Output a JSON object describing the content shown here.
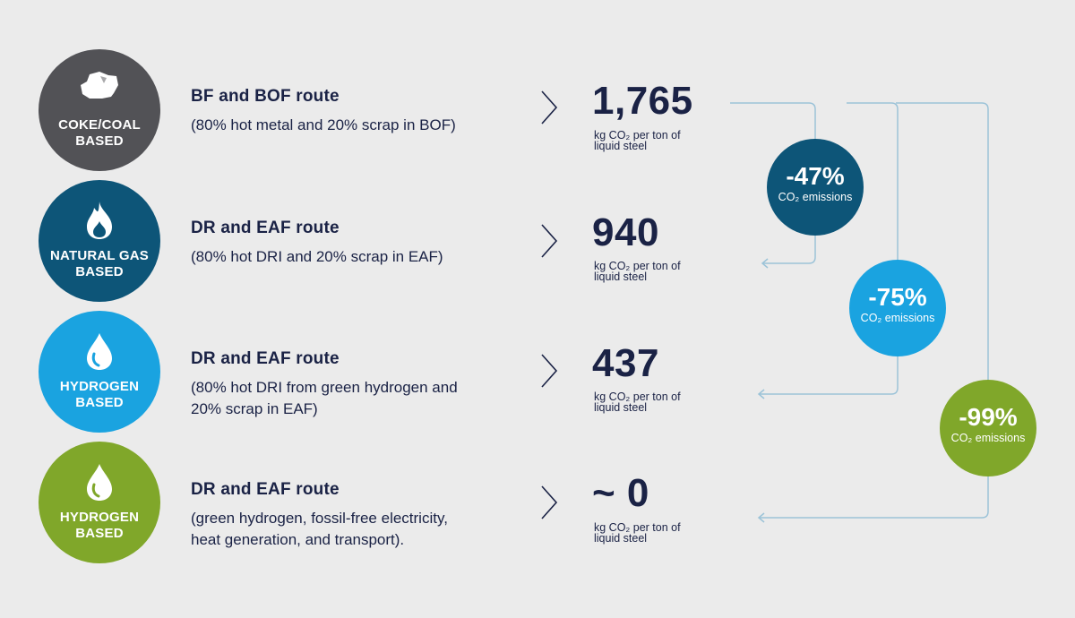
{
  "rows": [
    {
      "source": [
        "COKE/COAL",
        "BASED"
      ],
      "icon": "coal-icon",
      "color": "#525256",
      "title": "BF and BOF route",
      "desc": [
        "(80% hot metal and 20% scrap in BOF)"
      ],
      "value": "1,765",
      "unit": [
        "kg CO₂ per ton of",
        "liquid steel"
      ]
    },
    {
      "source": [
        "NATURAL GAS",
        "BASED"
      ],
      "icon": "flame-icon",
      "color": "#0d5578",
      "title": "DR and EAF route",
      "desc": [
        "(80% hot DRI and 20% scrap in EAF)"
      ],
      "value": "940",
      "unit": [
        "kg CO₂ per ton of",
        "liquid steel"
      ]
    },
    {
      "source": [
        "HYDROGEN",
        "BASED"
      ],
      "icon": "water-drop-icon",
      "color": "#1aa3e0",
      "title": "DR and EAF route",
      "desc": [
        "(80% hot DRI from green hydrogen and",
        "20% scrap in EAF)"
      ],
      "value": "437",
      "unit": [
        "kg CO₂ per ton of",
        "liquid steel"
      ]
    },
    {
      "source": [
        "HYDROGEN",
        "BASED"
      ],
      "icon": "water-drop-icon",
      "color": "#80a72a",
      "title": "DR and EAF route",
      "desc": [
        "(green hydrogen, fossil-free electricity,",
        "heat generation, and transport)."
      ],
      "value": "~ 0",
      "unit": [
        "kg CO₂ per ton of",
        "liquid steel"
      ]
    }
  ],
  "reductions": [
    {
      "pct": "-47%",
      "label": "CO₂ emissions",
      "color": "#0d5578"
    },
    {
      "pct": "-75%",
      "label": "CO₂ emissions",
      "color": "#1aa3e0"
    },
    {
      "pct": "-99%",
      "label": "CO₂ emissions",
      "color": "#80a72a"
    }
  ],
  "colors": {
    "text": "#1a2245",
    "connector": "#9cc3d8",
    "background": "#ebebeb"
  }
}
